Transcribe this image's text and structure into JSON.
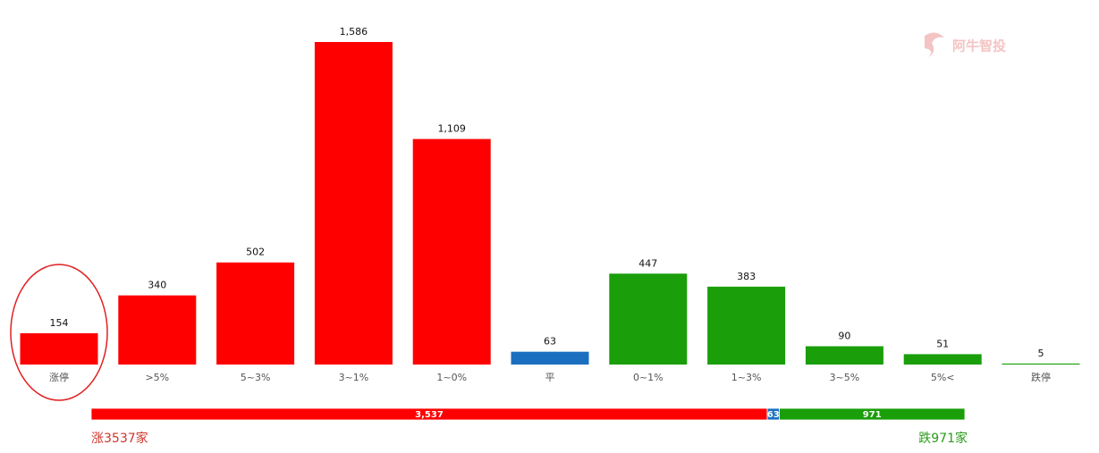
{
  "chart_data": {
    "type": "bar",
    "watermark": "阿牛智投",
    "categories": [
      "涨停",
      ">5%",
      "5~3%",
      "3~1%",
      "1~0%",
      "平",
      "0~1%",
      "1~3%",
      "3~5%",
      "5%<",
      "跌停"
    ],
    "values": [
      154,
      340,
      502,
      1586,
      1109,
      63,
      447,
      383,
      90,
      51,
      5
    ],
    "value_labels": [
      "154",
      "340",
      "502",
      "1,586",
      "1,109",
      "63",
      "447",
      "383",
      "90",
      "51",
      "5"
    ],
    "colors": [
      "#ff0000",
      "#ff0000",
      "#ff0000",
      "#ff0000",
      "#ff0000",
      "#1a6fbf",
      "#1a9e0a",
      "#1a9e0a",
      "#1a9e0a",
      "#1a9e0a",
      "#1a9e0a"
    ],
    "summary": {
      "values": [
        3537,
        63,
        971
      ],
      "value_labels": [
        "3,537",
        "63",
        "971"
      ],
      "colors": [
        "#ff0000",
        "#1a6fbf",
        "#1a9e0a"
      ],
      "rise_label": "涨3537家",
      "fall_label": "跌971家"
    }
  }
}
